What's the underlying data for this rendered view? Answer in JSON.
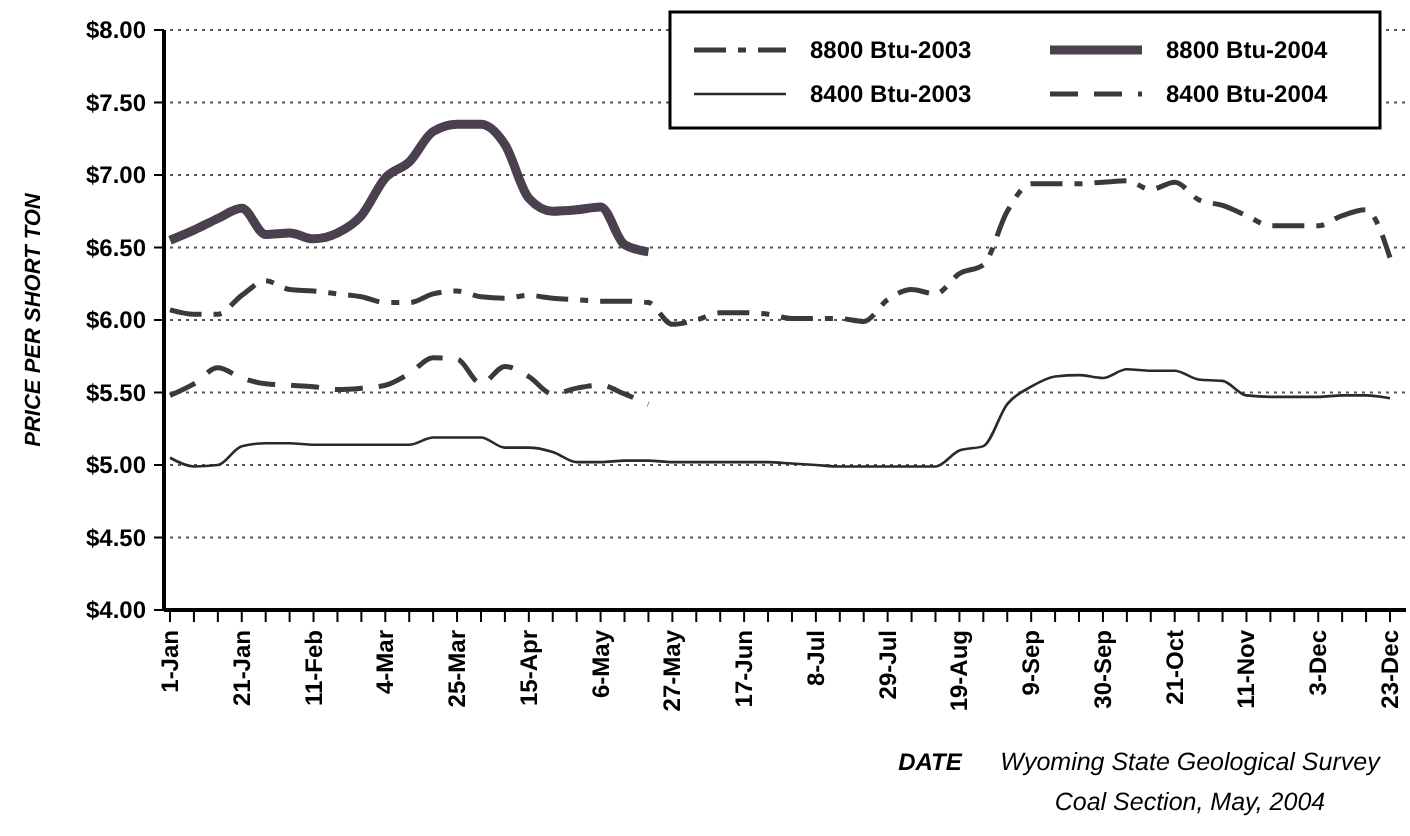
{
  "chart_data": {
    "type": "line",
    "xlabel": "DATE",
    "ylabel": "PRICE PER SHORT TON",
    "annotations": [
      "Wyoming State Geological Survey",
      "Coal Section, May, 2004"
    ],
    "categories": [
      "1-Jan",
      null,
      null,
      "21-Jan",
      null,
      null,
      "11-Feb",
      null,
      null,
      "4-Mar",
      null,
      null,
      "25-Mar",
      null,
      null,
      "15-Apr",
      null,
      null,
      "6-May",
      null,
      null,
      "27-May",
      null,
      null,
      "17-Jun",
      null,
      null,
      "8-Jul",
      null,
      null,
      "29-Jul",
      null,
      null,
      "19-Aug",
      null,
      null,
      "9-Sep",
      null,
      null,
      "30-Sep",
      null,
      null,
      "21-Oct",
      null,
      null,
      "11-Nov",
      null,
      null,
      "3-Dec",
      null,
      null,
      "23-Dec"
    ],
    "ylim": [
      4,
      8
    ],
    "yticks": [
      {
        "value": 4,
        "label": "$4.00"
      },
      {
        "value": 4.5,
        "label": "$4.50"
      },
      {
        "value": 5,
        "label": "$5.00"
      },
      {
        "value": 5.5,
        "label": "$5.50"
      },
      {
        "value": 6,
        "label": "$6.00"
      },
      {
        "value": 6.5,
        "label": "$6.50"
      },
      {
        "value": 7,
        "label": "$7.00"
      },
      {
        "value": 7.5,
        "label": "$7.50"
      },
      {
        "value": 8,
        "label": "$8.00"
      }
    ],
    "grid": "y",
    "legend": "top right",
    "marker": "none",
    "series": [
      {
        "name": "8800 Btu-2003",
        "color": "#3a3a3a",
        "line_style": "dashdot",
        "values": [
          6.07,
          6.04,
          6.04,
          6.17,
          6.27,
          6.21,
          6.2,
          6.18,
          6.16,
          6.12,
          6.12,
          6.18,
          6.2,
          6.16,
          6.15,
          6.17,
          6.15,
          6.14,
          6.13,
          6.13,
          6.12,
          5.97,
          6.0,
          6.05,
          6.05,
          6.04,
          6.01,
          6.01,
          6.01,
          5.99,
          6.14,
          6.21,
          6.18,
          6.32,
          6.38,
          6.75,
          6.94,
          6.94,
          6.94,
          6.95,
          6.96,
          6.9,
          6.95,
          6.83,
          6.79,
          6.72,
          6.65,
          6.65,
          6.65,
          6.72,
          6.76,
          6.43
        ]
      },
      {
        "name": "8800 Btu-2004",
        "color": "#4a4050",
        "line_style": "solid",
        "values": [
          6.55,
          6.62,
          6.7,
          6.77,
          6.59,
          6.6,
          6.56,
          6.6,
          6.72,
          6.98,
          7.09,
          7.3,
          7.35,
          7.35,
          7.21,
          6.84,
          6.75,
          6.76,
          6.78,
          6.52,
          6.47,
          null,
          null,
          null,
          null,
          null,
          null,
          null,
          null,
          null,
          null,
          null,
          null,
          null,
          null,
          null,
          null,
          null,
          null,
          null,
          null,
          null,
          null,
          null,
          null,
          null,
          null,
          null,
          null,
          null,
          null,
          null
        ]
      },
      {
        "name": "8400 Btu-2003",
        "color": "#2a2a2a",
        "line_style": "solid",
        "values": [
          5.05,
          4.99,
          5.0,
          5.13,
          5.15,
          5.15,
          5.14,
          5.14,
          5.14,
          5.14,
          5.14,
          5.19,
          5.19,
          5.19,
          5.12,
          5.12,
          5.09,
          5.02,
          5.02,
          5.03,
          5.03,
          5.02,
          5.02,
          5.02,
          5.02,
          5.02,
          5.01,
          5.0,
          4.99,
          4.99,
          4.99,
          4.99,
          4.99,
          5.1,
          5.13,
          5.42,
          5.54,
          5.61,
          5.62,
          5.6,
          5.66,
          5.65,
          5.65,
          5.59,
          5.58,
          5.48,
          5.47,
          5.47,
          5.47,
          5.48,
          5.48,
          5.46
        ]
      },
      {
        "name": "8400 Btu-2004",
        "color": "#3a3a3a",
        "line_style": "dashed",
        "values": [
          5.48,
          5.56,
          5.67,
          5.6,
          5.56,
          5.55,
          5.54,
          5.52,
          5.53,
          5.55,
          5.63,
          5.74,
          5.73,
          5.56,
          5.68,
          5.61,
          5.49,
          5.53,
          5.55,
          5.49,
          5.42,
          null,
          null,
          null,
          null,
          null,
          null,
          null,
          null,
          null,
          null,
          null,
          null,
          null,
          null,
          null,
          null,
          null,
          null,
          null,
          null,
          null,
          null,
          null,
          null,
          null,
          null,
          null,
          null,
          null,
          null,
          null
        ]
      }
    ]
  }
}
